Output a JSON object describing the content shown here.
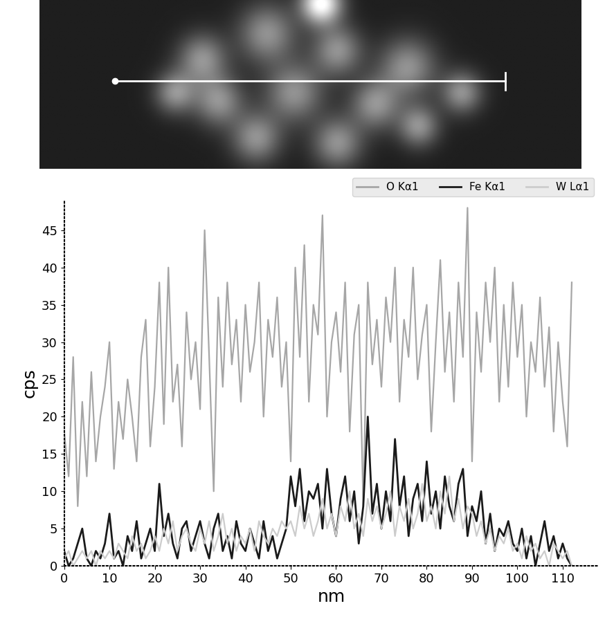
{
  "chart_data": {
    "type": "line",
    "x_label": "nm",
    "y_label": "cps",
    "x": [
      0,
      1,
      2,
      3,
      4,
      5,
      6,
      7,
      8,
      9,
      10,
      11,
      12,
      13,
      14,
      15,
      16,
      17,
      18,
      19,
      20,
      21,
      22,
      23,
      24,
      25,
      26,
      27,
      28,
      29,
      30,
      31,
      32,
      33,
      34,
      35,
      36,
      37,
      38,
      39,
      40,
      41,
      42,
      43,
      44,
      45,
      46,
      47,
      48,
      49,
      50,
      51,
      52,
      53,
      54,
      55,
      56,
      57,
      58,
      59,
      60,
      61,
      62,
      63,
      64,
      65,
      66,
      67,
      68,
      69,
      70,
      71,
      72,
      73,
      74,
      75,
      76,
      77,
      78,
      79,
      80,
      81,
      82,
      83,
      84,
      85,
      86,
      87,
      88,
      89,
      90,
      91,
      92,
      93,
      94,
      95,
      96,
      97,
      98,
      99,
      100,
      101,
      102,
      103,
      104,
      105,
      106,
      107,
      108,
      109,
      110,
      111,
      112
    ],
    "series": [
      {
        "name": "O Kα1",
        "color": "#a6a6a6",
        "values": [
          18,
          12,
          28,
          8,
          22,
          12,
          26,
          14,
          20,
          24,
          30,
          13,
          22,
          17,
          25,
          20,
          14,
          28,
          33,
          16,
          24,
          38,
          19,
          40,
          22,
          27,
          16,
          34,
          25,
          30,
          21,
          45,
          28,
          10,
          36,
          24,
          38,
          27,
          33,
          22,
          35,
          26,
          30,
          38,
          20,
          33,
          28,
          36,
          24,
          30,
          14,
          40,
          28,
          43,
          22,
          35,
          31,
          47,
          20,
          30,
          34,
          26,
          38,
          18,
          31,
          35,
          8,
          38,
          27,
          33,
          24,
          36,
          30,
          40,
          22,
          33,
          28,
          40,
          25,
          31,
          35,
          18,
          30,
          41,
          26,
          34,
          22,
          38,
          28,
          48,
          14,
          34,
          26,
          38,
          30,
          40,
          22,
          35,
          24,
          38,
          28,
          35,
          20,
          30,
          26,
          36,
          24,
          32,
          18,
          30,
          22,
          16,
          38
        ]
      },
      {
        "name": "Fe Kα1",
        "color": "#1a1a1a",
        "values": [
          2,
          0,
          1,
          3,
          5,
          1,
          0,
          2,
          1,
          3,
          7,
          1,
          2,
          0,
          4,
          2,
          6,
          1,
          3,
          5,
          2,
          11,
          4,
          7,
          3,
          1,
          5,
          6,
          2,
          4,
          6,
          3,
          1,
          5,
          7,
          2,
          4,
          1,
          6,
          3,
          2,
          5,
          3,
          1,
          6,
          2,
          4,
          1,
          3,
          5,
          12,
          8,
          13,
          6,
          10,
          9,
          11,
          5,
          13,
          7,
          4,
          9,
          12,
          6,
          10,
          3,
          8,
          20,
          7,
          11,
          5,
          10,
          6,
          17,
          8,
          12,
          4,
          9,
          11,
          6,
          14,
          7,
          10,
          5,
          12,
          8,
          6,
          11,
          13,
          4,
          8,
          6,
          10,
          3,
          7,
          2,
          5,
          4,
          6,
          3,
          2,
          5,
          1,
          4,
          0,
          3,
          6,
          2,
          4,
          1,
          3,
          1,
          0
        ]
      },
      {
        "name": "W Lα1",
        "color": "#cccccc",
        "values": [
          1,
          2,
          0,
          1,
          2,
          1,
          2,
          0,
          2,
          1,
          2,
          1,
          3,
          2,
          1,
          4,
          2,
          3,
          1,
          2,
          4,
          2,
          5,
          3,
          6,
          2,
          4,
          5,
          3,
          2,
          5,
          3,
          6,
          2,
          4,
          7,
          3,
          5,
          2,
          4,
          3,
          5,
          2,
          6,
          4,
          3,
          5,
          4,
          6,
          5,
          6,
          4,
          8,
          5,
          7,
          4,
          6,
          9,
          5,
          7,
          4,
          8,
          6,
          10,
          5,
          7,
          4,
          9,
          6,
          8,
          5,
          7,
          10,
          4,
          8,
          6,
          9,
          5,
          7,
          11,
          6,
          8,
          5,
          10,
          7,
          12,
          6,
          9,
          5,
          8,
          7,
          4,
          6,
          3,
          5,
          2,
          4,
          3,
          5,
          2,
          3,
          1,
          4,
          2,
          3,
          1,
          2,
          0,
          3,
          2,
          1,
          2,
          0
        ]
      }
    ],
    "xlim": [
      0,
      118
    ],
    "xticks": [
      0,
      10,
      20,
      30,
      40,
      50,
      60,
      70,
      80,
      90,
      100,
      110
    ],
    "ylim": [
      0,
      49
    ],
    "yticks": [
      0,
      5,
      10,
      15,
      20,
      25,
      30,
      35,
      40,
      45
    ],
    "legend": "upper right",
    "grid": false
  }
}
